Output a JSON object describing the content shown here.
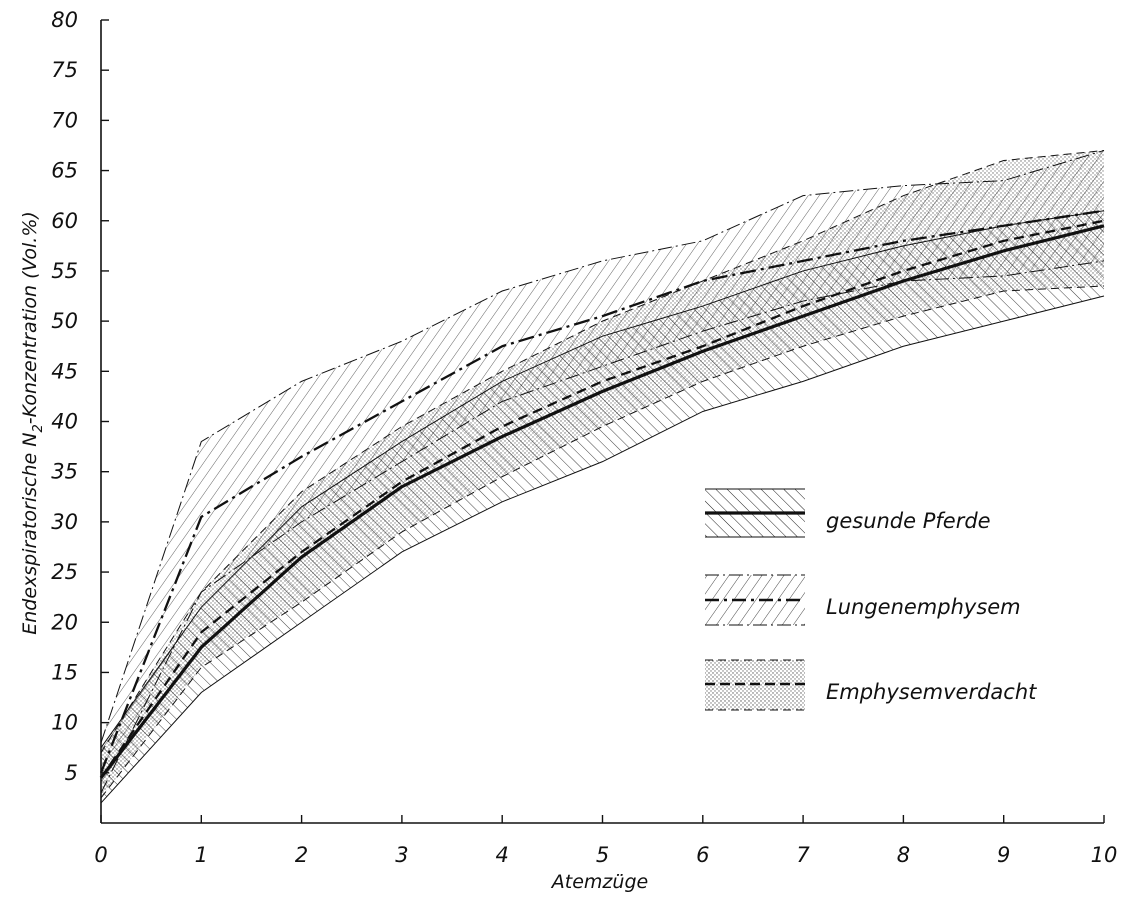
{
  "chart_data": {
    "type": "area",
    "xlabel": "Atemzüge",
    "ylabel_main": "Endexspiratorische N",
    "ylabel_sub": "2",
    "ylabel_tail": "-Konzentration (Vol.%)",
    "x": [
      0,
      1,
      2,
      3,
      4,
      5,
      6,
      7,
      8,
      9,
      10
    ],
    "xlim": [
      0,
      10
    ],
    "ylim": [
      0,
      80
    ],
    "yticks": [
      5,
      10,
      15,
      20,
      25,
      30,
      35,
      40,
      45,
      50,
      55,
      60,
      65,
      70,
      75,
      80
    ],
    "grid": false,
    "legend_position": "right-center",
    "series": [
      {
        "name": "gesunde Pferde",
        "key": "gesunde",
        "line_style": "solid",
        "color": "#111111",
        "mean": [
          4.5,
          17.5,
          26.5,
          33.5,
          38.5,
          43,
          47,
          50.5,
          54,
          57,
          59.5
        ],
        "upper": [
          7.5,
          21.5,
          31.5,
          38,
          44,
          48.5,
          51.5,
          55,
          57.5,
          59.5,
          61
        ],
        "lower": [
          2,
          13,
          20,
          27,
          32,
          36,
          41,
          44,
          47.5,
          50,
          52.5
        ]
      },
      {
        "name": "Lungenemphysem",
        "key": "emphysem",
        "line_style": "dashdot",
        "color": "#111111",
        "mean": [
          5,
          30.5,
          36.5,
          42,
          47.5,
          50.5,
          54,
          56,
          58,
          59.5,
          61
        ],
        "upper": [
          8,
          38,
          44,
          48,
          53,
          56,
          58,
          62.5,
          63.5,
          64,
          67
        ],
        "lower": [
          3,
          23,
          30,
          36,
          42,
          45.5,
          49,
          52,
          54,
          54.5,
          56
        ]
      },
      {
        "name": "Emphysemverdacht",
        "key": "verdacht",
        "line_style": "dashed",
        "color": "#111111",
        "mean": [
          4.5,
          19,
          27,
          34,
          39.5,
          44,
          47.5,
          51.5,
          55,
          58,
          60
        ],
        "upper": [
          7,
          23,
          33,
          39.5,
          45,
          50,
          54,
          58,
          62.5,
          66,
          67
        ],
        "lower": [
          2.5,
          15.5,
          22,
          29,
          34.5,
          39.5,
          44,
          47.5,
          50.5,
          53,
          53.5
        ]
      }
    ]
  }
}
